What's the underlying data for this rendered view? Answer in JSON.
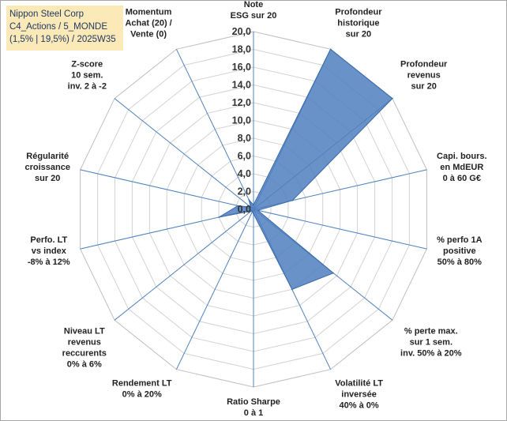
{
  "title_box": {
    "line1": "Nippon Steel Corp",
    "line2": "C4_Actions / 5_MONDE",
    "line3": "(1,5% | 19,5%) / 2025W35"
  },
  "chart_data": {
    "type": "radar",
    "scale_max": 20,
    "scale_step": 2,
    "tick_labels": [
      "0,0",
      "2,0",
      "4,0",
      "6,0",
      "8,0",
      "10,0",
      "12,0",
      "14,0",
      "16,0",
      "18,0",
      "20,0"
    ],
    "grid": true,
    "axes": [
      {
        "label": [
          "Note",
          "ESG sur 20"
        ],
        "value": 0.5
      },
      {
        "label": [
          "Profondeur",
          "historique",
          "sur 20"
        ],
        "value": 20
      },
      {
        "label": [
          "Profondeur",
          "revenus",
          "sur 20"
        ],
        "value": 20
      },
      {
        "label": [
          "Capi. bours.",
          "en MdEUR",
          "0 à 60 G€"
        ],
        "value": 4.5
      },
      {
        "label": [
          "% perfo 1A",
          "positive",
          "50% à 80%"
        ],
        "value": 0.5
      },
      {
        "label": [
          "% perte max.",
          "sur 1 sem.",
          "inv. 50% à 20%"
        ],
        "value": 11.5
      },
      {
        "label": [
          "Volatilité LT",
          "inversée",
          "40% à 0%"
        ],
        "value": 10
      },
      {
        "label": [
          "Ratio Sharpe",
          "0 à 1"
        ],
        "value": 0.5
      },
      {
        "label": [
          "Rendement LT",
          "0% à 20%"
        ],
        "value": 0.3
      },
      {
        "label": [
          "Niveau LT",
          "revenus",
          "reccurents",
          "0% à 6%"
        ],
        "value": 0.3
      },
      {
        "label": [
          "Perfo. LT",
          "vs index",
          "-8% à 12%"
        ],
        "value": 4
      },
      {
        "label": [
          "Régularité",
          "croissance",
          "sur 20"
        ],
        "value": 1.8
      },
      {
        "label": [
          "Z-score",
          "10 sem.",
          "inv. 2 à -2"
        ],
        "value": 0.4
      },
      {
        "label": [
          "Momentum",
          "Achat (20) /",
          "Vente (0)"
        ],
        "value": 1.2
      }
    ],
    "colors": {
      "fill": "#4f7fbf",
      "grid": "#d3d3d3",
      "axis": "#4f81bd"
    }
  }
}
